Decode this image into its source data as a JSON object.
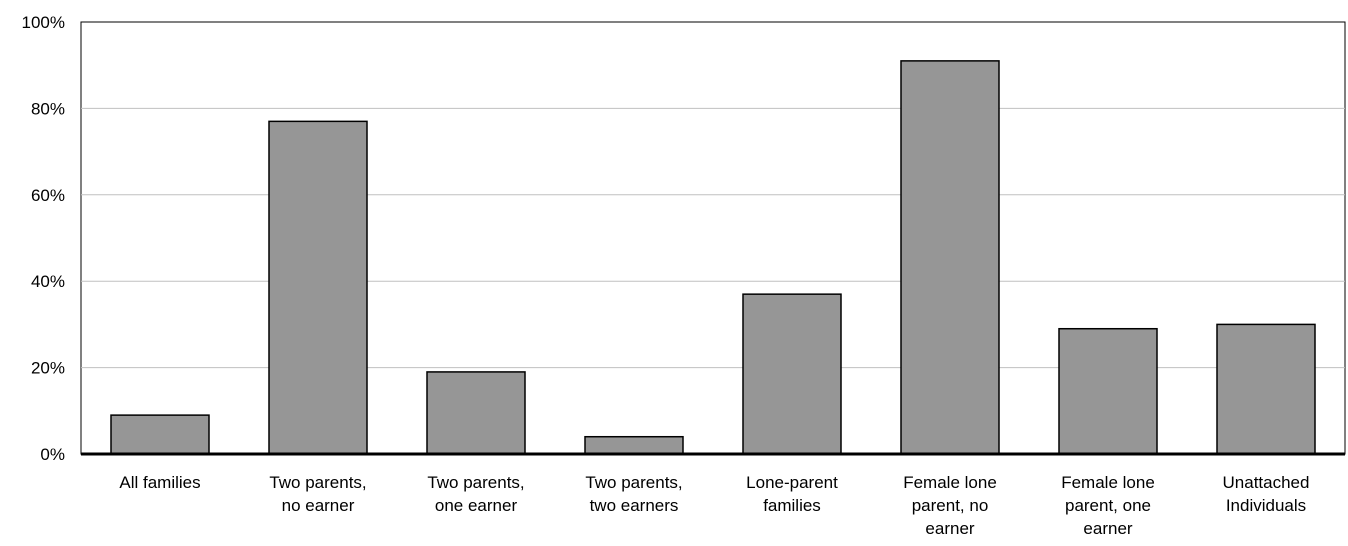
{
  "chart_data": {
    "type": "bar",
    "categories": [
      [
        "All families"
      ],
      [
        "Two parents,",
        "no earner"
      ],
      [
        "Two parents,",
        "one earner"
      ],
      [
        "Two parents,",
        "two earners"
      ],
      [
        "Lone-parent",
        "families"
      ],
      [
        "Female lone",
        "parent, no",
        "earner"
      ],
      [
        "Female lone",
        "parent, one",
        "earner"
      ],
      [
        "Unattached",
        "Individuals"
      ]
    ],
    "values": [
      9,
      77,
      19,
      4,
      37,
      91,
      29,
      30
    ],
    "ylim": [
      0,
      100
    ],
    "yticks": [
      "0%",
      "20%",
      "40%",
      "60%",
      "80%",
      "100%"
    ],
    "ytick_values": [
      0,
      20,
      40,
      60,
      80,
      100
    ],
    "title": "",
    "xlabel": "",
    "ylabel": "",
    "grid": true,
    "colors": {
      "bar": "#969696",
      "bar_stroke": "#000000",
      "grid": "#c0c0c0",
      "axis": "#000000"
    }
  }
}
